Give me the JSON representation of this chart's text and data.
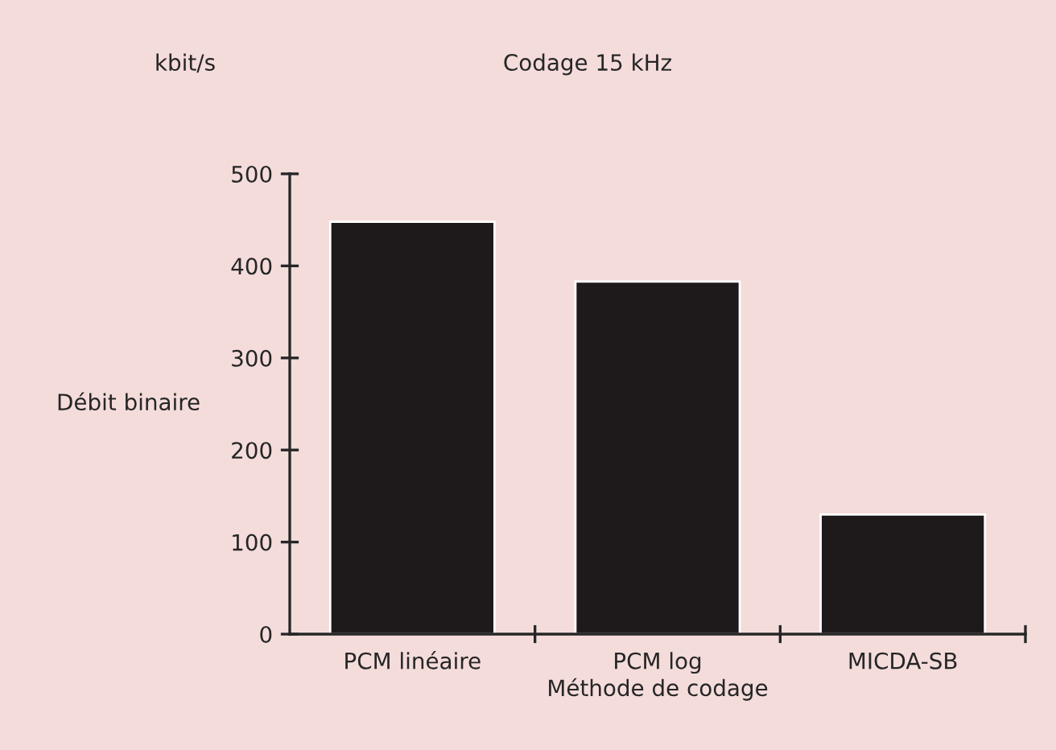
{
  "chart_data": {
    "type": "bar",
    "title": "Codage 15 kHz",
    "xlabel": "Méthode de codage",
    "ylabel": "Débit binaire",
    "annotations": [
      "kbit/s"
    ],
    "categories": [
      "PCM linéaire",
      "PCM log",
      "MICDA-SB"
    ],
    "values": [
      448,
      383,
      130
    ],
    "color": "#1e1a1b",
    "ylim": [
      0,
      500
    ],
    "yticks": [
      0,
      100,
      200,
      300,
      400,
      500
    ],
    "grid": false,
    "legend": false
  }
}
